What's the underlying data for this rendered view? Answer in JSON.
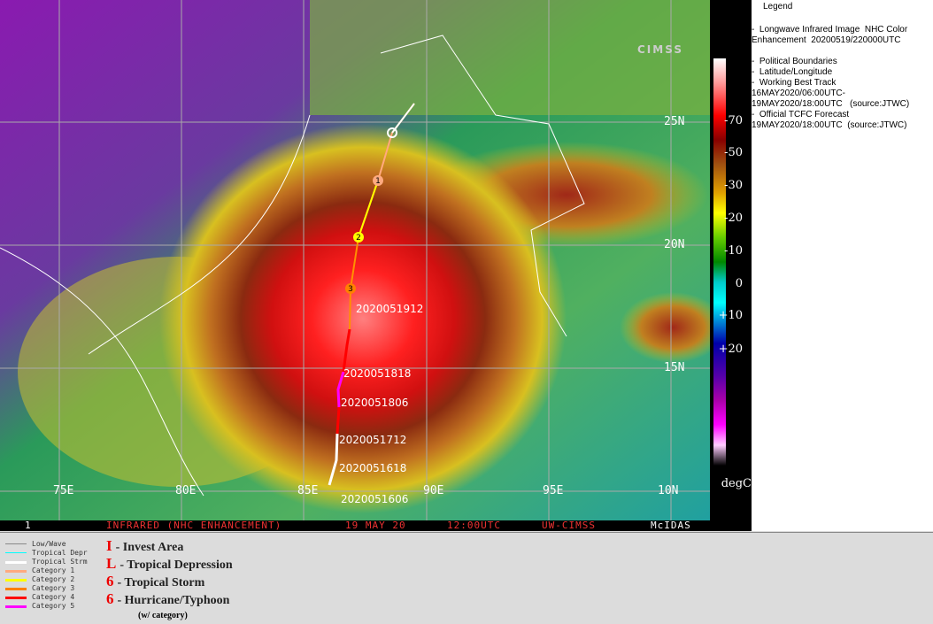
{
  "map": {
    "lat_labels": [
      "25N",
      "20N",
      "15N",
      "10N"
    ],
    "lon_labels": [
      "75E",
      "80E",
      "85E",
      "90E",
      "95E"
    ],
    "track_labels": [
      "2020051912",
      "2020051818",
      "2020051806",
      "2020051712",
      "2020051618",
      "2020051606"
    ],
    "forecast_points": [
      "3",
      "2",
      "1"
    ],
    "logo": "CIMSS"
  },
  "colorbar": {
    "ticks": [
      "-70",
      "-50",
      "-30",
      "-20",
      "-10",
      "0",
      "+10",
      "+20"
    ],
    "unit": "degC"
  },
  "legend": {
    "title": "Legend",
    "lines": [
      "-  Longwave Infrared Image  NHC Color",
      "Enhancement  20200519/220000UTC",
      "",
      "-  Political Boundaries",
      "-  Latitude/Longitude",
      "-  Working Best Track",
      "16MAY2020/06:00UTC-",
      "19MAY2020/18:00UTC   (source:JTWC)",
      "-  Official TCFC Forecast",
      "19MAY2020/18:00UTC  (source:JTWC)"
    ]
  },
  "status": {
    "frame": "1",
    "product": "INFRARED (NHC ENHANCEMENT)",
    "date": "19 MAY 20",
    "time": "12:00UTC",
    "source": "UW-CIMSS",
    "system": "McIDAS"
  },
  "track_key": [
    {
      "label": "Low/Wave",
      "color": "#888888"
    },
    {
      "label": "Tropical Depr",
      "color": "#00ffff"
    },
    {
      "label": "Tropical Strm",
      "color": "#ffffff"
    },
    {
      "label": "Category 1",
      "color": "#ffaa80"
    },
    {
      "label": "Category 2",
      "color": "#ffff00"
    },
    {
      "label": "Category 3",
      "color": "#ff8000"
    },
    {
      "label": "Category 4",
      "color": "#ff0000"
    },
    {
      "label": "Category 5",
      "color": "#ff00ff"
    }
  ],
  "symbol_key": [
    {
      "glyph": "I",
      "label": "- Invest Area"
    },
    {
      "glyph": "L",
      "label": "- Tropical Depression"
    },
    {
      "glyph": "6",
      "label": "- Tropical Storm"
    },
    {
      "glyph": "6",
      "label": "- Hurricane/Typhoon"
    }
  ],
  "symbol_note": "(w/ category)"
}
